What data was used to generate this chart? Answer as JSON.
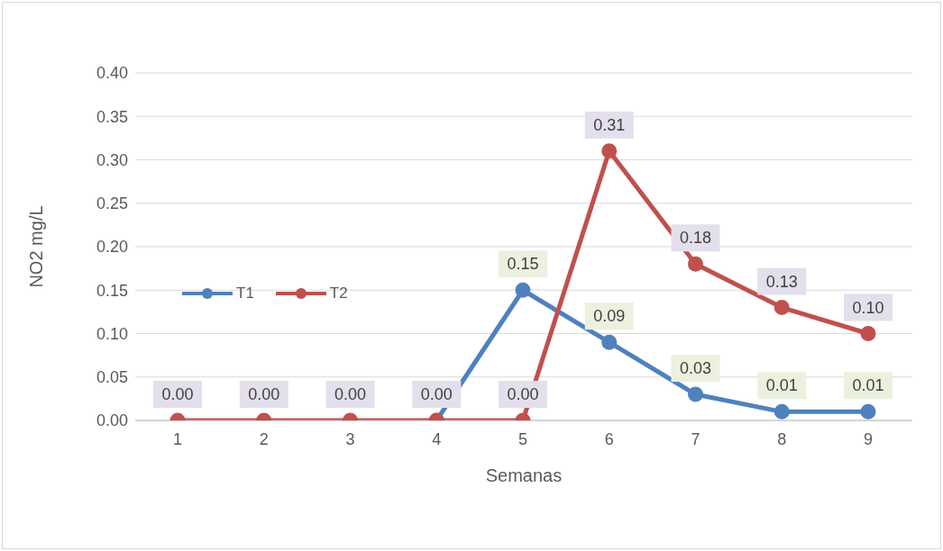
{
  "chart_data": {
    "type": "line",
    "xlabel": "Semanas",
    "ylabel": "NO2 mg/L",
    "categories": [
      "1",
      "2",
      "3",
      "4",
      "5",
      "6",
      "7",
      "8",
      "9"
    ],
    "series": [
      {
        "name": "T1",
        "color": "#4f81bd",
        "values": [
          null,
          null,
          null,
          0,
          0.15,
          0.09,
          0.03,
          0.01,
          0.01
        ],
        "value_labels": [
          null,
          null,
          null,
          null,
          "0.15",
          "0.09",
          "0.03",
          "0.01",
          "0.01"
        ]
      },
      {
        "name": "T2",
        "color": "#c0504d",
        "values": [
          0,
          0,
          0,
          0,
          0,
          0.31,
          0.18,
          0.13,
          0.1
        ],
        "value_labels": [
          "0.00",
          "0.00",
          "0.00",
          "0.00",
          "0.00",
          "0.31",
          "0.18",
          "0.13",
          "0.10"
        ]
      }
    ],
    "ylim": [
      0,
      0.4
    ],
    "yticks": [
      {
        "value": 0,
        "label": "0.00"
      },
      {
        "value": 0.05,
        "label": "0.05"
      },
      {
        "value": 0.1,
        "label": "0.10"
      },
      {
        "value": 0.15,
        "label": "0.15"
      },
      {
        "value": 0.2,
        "label": "0.20"
      },
      {
        "value": 0.25,
        "label": "0.25"
      },
      {
        "value": 0.3,
        "label": "0.30"
      },
      {
        "value": 0.35,
        "label": "0.35"
      },
      {
        "value": 0.4,
        "label": "0.40"
      }
    ],
    "grid": "y",
    "legend": "left",
    "marker": "circle",
    "line_style": "solid"
  }
}
